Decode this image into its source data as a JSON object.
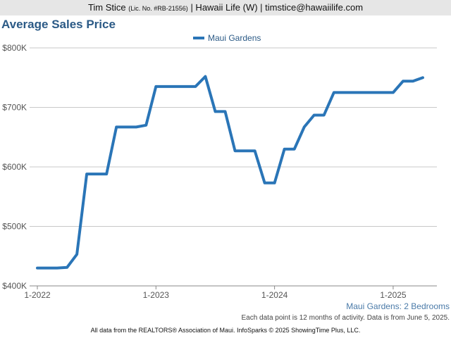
{
  "header": {
    "agent_name": "Tim Stice",
    "license": "(Lic. No. #RB-21556)",
    "details": "| Hawaii Life (W) | timstice@hawaiilife.com"
  },
  "chart_data": {
    "type": "line",
    "title": "Average Sales Price",
    "subtitle": "Maui Gardens: 2 Bedrooms",
    "x_tick_labels": [
      "1-2022",
      "1-2023",
      "1-2024",
      "1-2025"
    ],
    "y_tick_labels": [
      "$400K",
      "$500K",
      "$600K",
      "$700K",
      "$800K"
    ],
    "y_ticks": [
      400000,
      500000,
      600000,
      700000,
      800000
    ],
    "ylim": [
      400000,
      800000
    ],
    "grid": true,
    "legend_position": "top-center",
    "series": [
      {
        "name": "Maui Gardens",
        "color": "#2a75b7",
        "x": [
          "2022-01",
          "2022-02",
          "2022-03",
          "2022-04",
          "2022-05",
          "2022-06",
          "2022-07",
          "2022-08",
          "2022-09",
          "2022-10",
          "2022-11",
          "2022-12",
          "2023-01",
          "2023-02",
          "2023-03",
          "2023-04",
          "2023-05",
          "2023-06",
          "2023-07",
          "2023-08",
          "2023-09",
          "2023-10",
          "2023-11",
          "2023-12",
          "2024-01",
          "2024-02",
          "2024-03",
          "2024-04",
          "2024-05",
          "2024-06",
          "2024-07",
          "2024-08",
          "2024-09",
          "2024-10",
          "2024-11",
          "2024-12",
          "2025-01",
          "2025-02",
          "2025-03",
          "2025-04"
        ],
        "values": [
          430000,
          430000,
          430000,
          431000,
          453000,
          588000,
          588000,
          588000,
          667000,
          667000,
          667000,
          670000,
          735000,
          735000,
          735000,
          735000,
          735000,
          752000,
          693000,
          693000,
          627000,
          627000,
          627000,
          573000,
          573000,
          630000,
          630000,
          667000,
          687000,
          687000,
          725000,
          725000,
          725000,
          725000,
          725000,
          725000,
          725000,
          744000,
          744000,
          750000
        ]
      }
    ]
  },
  "footnote": "Each data point is 12 months of activity. Data is from June 5, 2025.",
  "footer": "All data from the REALTORS® Association of Maui. InfoSparks © 2025 ShowingTime Plus, LLC."
}
